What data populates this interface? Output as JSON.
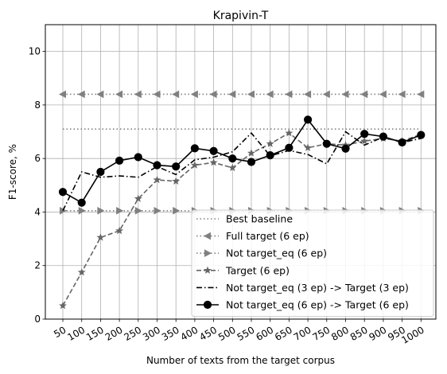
{
  "chart_data": {
    "type": "line",
    "title": "Krapivin-T",
    "xlabel": "Number of texts from the target corpus",
    "ylabel": "F1-score, %",
    "ylim": [
      0,
      11
    ],
    "y_ticks": [
      "0",
      "2",
      "4",
      "6",
      "8",
      "10"
    ],
    "categories": [
      "50",
      "100",
      "150",
      "200",
      "250",
      "300",
      "350",
      "400",
      "450",
      "500",
      "550",
      "600",
      "650",
      "700",
      "750",
      "800",
      "850",
      "900",
      "950",
      "1000"
    ],
    "grid": true,
    "legend_position": "lower-right",
    "series": [
      {
        "name": "Best baseline",
        "style": "dotted",
        "color": "#808080",
        "marker": "none",
        "values": [
          7.1,
          7.1,
          7.1,
          7.1,
          7.1,
          7.1,
          7.1,
          7.1,
          7.1,
          7.1,
          7.1,
          7.1,
          7.1,
          7.1,
          7.1,
          7.1,
          7.1,
          7.1,
          7.1,
          7.1
        ]
      },
      {
        "name": "Full target (6 ep)",
        "style": "dotted",
        "color": "#808080",
        "marker": "triangle-left",
        "values": [
          8.4,
          8.4,
          8.4,
          8.4,
          8.4,
          8.4,
          8.4,
          8.4,
          8.4,
          8.4,
          8.4,
          8.4,
          8.4,
          8.4,
          8.4,
          8.4,
          8.4,
          8.4,
          8.4,
          8.4
        ]
      },
      {
        "name": "Not target_eq (6 ep)",
        "style": "dotted",
        "color": "#808080",
        "marker": "triangle-right",
        "values": [
          4.05,
          4.05,
          4.05,
          4.05,
          4.05,
          4.05,
          4.05,
          4.05,
          4.05,
          4.05,
          4.05,
          4.05,
          4.05,
          4.05,
          4.05,
          4.05,
          4.05,
          4.05,
          4.05,
          4.05
        ]
      },
      {
        "name": "Target (6 ep)",
        "style": "dashed",
        "color": "#666666",
        "marker": "star",
        "values": [
          0.5,
          1.75,
          3.05,
          3.3,
          4.5,
          5.2,
          5.15,
          5.75,
          5.85,
          5.65,
          6.2,
          6.55,
          6.95,
          6.4,
          6.55,
          6.5,
          6.65,
          6.75,
          6.65,
          6.9
        ]
      },
      {
        "name": "Not target_eq (3 ep) -> Target (3 ep)",
        "style": "dashdot",
        "color": "#000000",
        "marker": "none",
        "values": [
          4.05,
          5.5,
          5.3,
          5.35,
          5.3,
          5.7,
          5.4,
          5.95,
          6.05,
          6.25,
          6.95,
          6.1,
          6.3,
          6.15,
          5.8,
          7.0,
          6.5,
          6.8,
          6.6,
          6.75
        ]
      },
      {
        "name": "Not target_eq (6 ep) -> Target (6 ep)",
        "style": "solid",
        "color": "#000000",
        "marker": "circle",
        "values": [
          4.75,
          4.35,
          5.5,
          5.92,
          6.05,
          5.75,
          5.7,
          6.38,
          6.28,
          6.0,
          5.87,
          6.12,
          6.4,
          7.45,
          6.55,
          6.37,
          6.92,
          6.82,
          6.6,
          6.88
        ]
      }
    ]
  }
}
